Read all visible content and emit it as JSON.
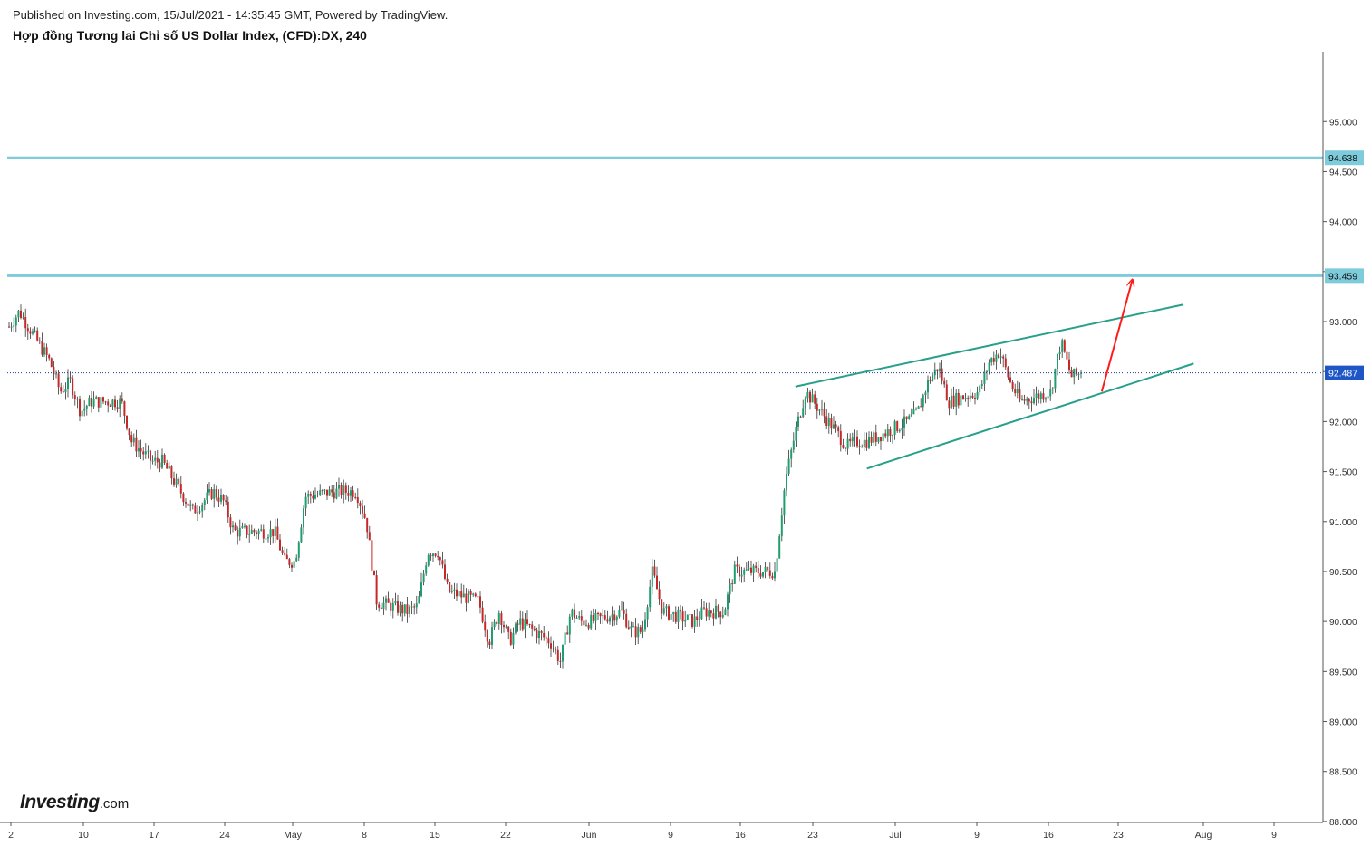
{
  "header": {
    "published": "Published on Investing.com, 15/Jul/2021 - 14:35:45 GMT, Powered by TradingView.",
    "title": "Hợp đồng Tương lai Chỉ số US Dollar Index, (CFD):DX, 240"
  },
  "logo": {
    "brand": "Investing",
    "domain": ".com"
  },
  "chart_data": {
    "type": "candlestick",
    "instrument": "US Dollar Index (CFD):DX",
    "timeframe": "240",
    "ylim": [
      87.99,
      95.7
    ],
    "y_ticks": [
      "95.000",
      "94.500",
      "94.000",
      "93.500",
      "93.000",
      "92.500",
      "92.000",
      "91.500",
      "91.000",
      "90.500",
      "90.000",
      "89.500",
      "89.000",
      "88.500",
      "88.000"
    ],
    "x_ticks": [
      "2",
      "10",
      "17",
      "24",
      "May",
      "8",
      "15",
      "22",
      "Jun",
      "9",
      "16",
      "23",
      "Jul",
      "9",
      "16",
      "23",
      "Aug",
      "9"
    ],
    "grid": false,
    "current_price": {
      "label": "92.487",
      "value": 92.487
    },
    "horizontal_levels": [
      {
        "label": "94.638",
        "value": 94.638,
        "color": "#7ecbdb"
      },
      {
        "label": "93.459",
        "value": 93.459,
        "color": "#7ecbdb"
      }
    ],
    "close_path": [
      {
        "x": "2021-04-01",
        "y": 92.95
      },
      {
        "x": "2021-04-02",
        "y": 93.1
      },
      {
        "x": "2021-04-05",
        "y": 92.6
      },
      {
        "x": "2021-04-06",
        "y": 92.3
      },
      {
        "x": "2021-04-07",
        "y": 92.4
      },
      {
        "x": "2021-04-08",
        "y": 92.1
      },
      {
        "x": "2021-04-09",
        "y": 92.2
      },
      {
        "x": "2021-04-12",
        "y": 92.2
      },
      {
        "x": "2021-04-13",
        "y": 91.8
      },
      {
        "x": "2021-04-14",
        "y": 91.7
      },
      {
        "x": "2021-04-15",
        "y": 91.6
      },
      {
        "x": "2021-04-16",
        "y": 91.6
      },
      {
        "x": "2021-04-19",
        "y": 91.1
      },
      {
        "x": "2021-04-20",
        "y": 91.2
      },
      {
        "x": "2021-04-21",
        "y": 91.3
      },
      {
        "x": "2021-04-22",
        "y": 91.2
      },
      {
        "x": "2021-04-23",
        "y": 90.9
      },
      {
        "x": "2021-04-26",
        "y": 90.9
      },
      {
        "x": "2021-04-27",
        "y": 90.9
      },
      {
        "x": "2021-04-28",
        "y": 90.6
      },
      {
        "x": "2021-04-29",
        "y": 90.6
      },
      {
        "x": "2021-04-30",
        "y": 91.25
      },
      {
        "x": "2021-05-03",
        "y": 91.3
      },
      {
        "x": "2021-05-04",
        "y": 91.3
      },
      {
        "x": "2021-05-05",
        "y": 91.3
      },
      {
        "x": "2021-05-06",
        "y": 91.0
      },
      {
        "x": "2021-05-07",
        "y": 90.2
      },
      {
        "x": "2021-05-10",
        "y": 90.1
      },
      {
        "x": "2021-05-11",
        "y": 90.15
      },
      {
        "x": "2021-05-12",
        "y": 90.7
      },
      {
        "x": "2021-05-13",
        "y": 90.7
      },
      {
        "x": "2021-05-14",
        "y": 90.3
      },
      {
        "x": "2021-05-17",
        "y": 90.2
      },
      {
        "x": "2021-05-18",
        "y": 89.8
      },
      {
        "x": "2021-05-19",
        "y": 90.1
      },
      {
        "x": "2021-05-20",
        "y": 89.8
      },
      {
        "x": "2021-05-21",
        "y": 90.0
      },
      {
        "x": "2021-05-24",
        "y": 89.8
      },
      {
        "x": "2021-05-25",
        "y": 89.6
      },
      {
        "x": "2021-05-26",
        "y": 90.1
      },
      {
        "x": "2021-05-27",
        "y": 90.0
      },
      {
        "x": "2021-05-28",
        "y": 90.0
      },
      {
        "x": "2021-05-31",
        "y": 90.1
      },
      {
        "x": "2021-06-01",
        "y": 89.9
      },
      {
        "x": "2021-06-02",
        "y": 89.9
      },
      {
        "x": "2021-06-03",
        "y": 90.5
      },
      {
        "x": "2021-06-04",
        "y": 90.1
      },
      {
        "x": "2021-06-07",
        "y": 90.0
      },
      {
        "x": "2021-06-08",
        "y": 90.1
      },
      {
        "x": "2021-06-09",
        "y": 90.1
      },
      {
        "x": "2021-06-10",
        "y": 90.1
      },
      {
        "x": "2021-06-11",
        "y": 90.5
      },
      {
        "x": "2021-06-14",
        "y": 90.5
      },
      {
        "x": "2021-06-15",
        "y": 90.5
      },
      {
        "x": "2021-06-16",
        "y": 91.4
      },
      {
        "x": "2021-06-17",
        "y": 91.9
      },
      {
        "x": "2021-06-18",
        "y": 92.3
      },
      {
        "x": "2021-06-21",
        "y": 91.9
      },
      {
        "x": "2021-06-22",
        "y": 91.75
      },
      {
        "x": "2021-06-23",
        "y": 91.8
      },
      {
        "x": "2021-06-24",
        "y": 91.8
      },
      {
        "x": "2021-06-25",
        "y": 91.85
      },
      {
        "x": "2021-06-28",
        "y": 92.0
      },
      {
        "x": "2021-06-29",
        "y": 92.1
      },
      {
        "x": "2021-06-30",
        "y": 92.4
      },
      {
        "x": "2021-07-01",
        "y": 92.55
      },
      {
        "x": "2021-07-02",
        "y": 92.2
      },
      {
        "x": "2021-07-05",
        "y": 92.3
      },
      {
        "x": "2021-07-06",
        "y": 92.6
      },
      {
        "x": "2021-07-07",
        "y": 92.7
      },
      {
        "x": "2021-07-08",
        "y": 92.4
      },
      {
        "x": "2021-07-09",
        "y": 92.2
      },
      {
        "x": "2021-07-12",
        "y": 92.3
      },
      {
        "x": "2021-07-13",
        "y": 92.8
      },
      {
        "x": "2021-07-14",
        "y": 92.45
      },
      {
        "x": "2021-07-15",
        "y": 92.487
      }
    ],
    "drawings": [
      {
        "name": "channel-upper-line",
        "color": "#26a08a",
        "from": {
          "x": "2021-06-17",
          "y": 92.35
        },
        "to": {
          "x": "2021-07-25",
          "y": 93.17
        }
      },
      {
        "name": "channel-lower-line",
        "color": "#26a08a",
        "from": {
          "x": "2021-06-24",
          "y": 91.53
        },
        "to": {
          "x": "2021-07-26",
          "y": 92.58
        }
      },
      {
        "name": "projection-arrow",
        "color": "#ff1a1a",
        "from": {
          "x": "2021-07-17",
          "y": 92.3
        },
        "to": {
          "x": "2021-07-20",
          "y": 93.42
        }
      }
    ],
    "colors": {
      "up": "#26a69a",
      "down": "#ef5350",
      "body_up": "#1e9e6e",
      "body_down": "#c62828",
      "wick": "#333333",
      "price_line": "#1e3a8a"
    }
  }
}
